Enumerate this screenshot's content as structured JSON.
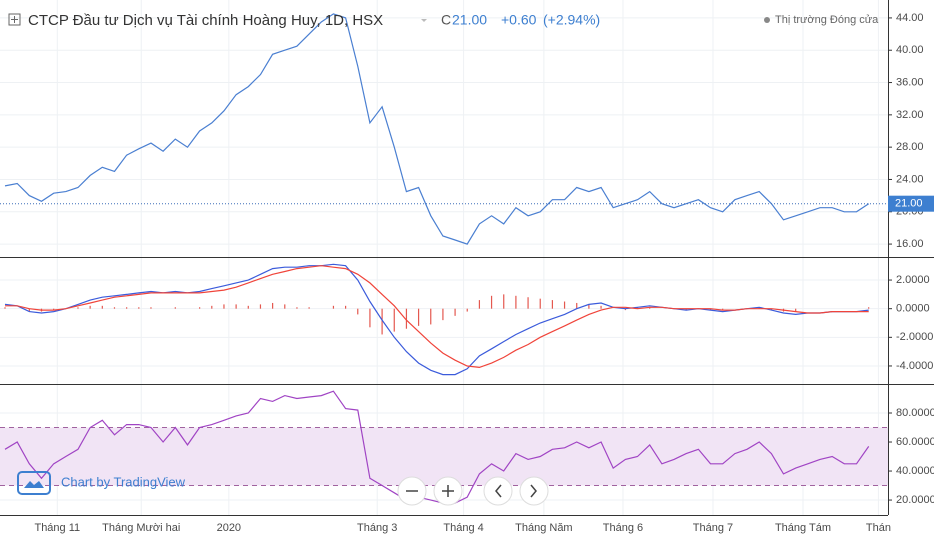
{
  "header": {
    "title": "CTCP Đầu tư Dịch vụ Tài chính Hoàng Huy, 1D, HSX",
    "close_prefix": "C",
    "close": "21.00",
    "change": "+0.60",
    "change_pct": "(+2.94%)",
    "status": "Thị trường Đóng cửa",
    "watermark": "Chart by TradingView"
  },
  "x_axis": {
    "xlim": [
      0,
      73
    ],
    "xticks": [
      {
        "value": 4.3,
        "label": "Tháng 11"
      },
      {
        "value": 11.2,
        "label": "Tháng Mười hai"
      },
      {
        "value": 18.4,
        "label": "2020"
      },
      {
        "value": 30.6,
        "label": "Tháng 3"
      },
      {
        "value": 37.7,
        "label": "Tháng 4"
      },
      {
        "value": 44.3,
        "label": "Tháng Năm"
      },
      {
        "value": 50.8,
        "label": "Tháng 6"
      },
      {
        "value": 58.2,
        "label": "Tháng 7"
      },
      {
        "value": 65.6,
        "label": "Tháng Tám"
      },
      {
        "value": 71.8,
        "label": "Thán"
      }
    ],
    "grid": true
  },
  "chart_data": [
    {
      "type": "line",
      "color": "#4a7fd1",
      "ylim": [
        14.4,
        45.6
      ],
      "yticks": [
        {
          "value": 16,
          "label": "16.00"
        },
        {
          "value": 20,
          "label": "20.00"
        },
        {
          "value": 24,
          "label": "24.00"
        },
        {
          "value": 28,
          "label": "28.00"
        },
        {
          "value": 32,
          "label": "32.00"
        },
        {
          "value": 36,
          "label": "36.00"
        },
        {
          "value": 40,
          "label": "40.00"
        },
        {
          "value": 44,
          "label": "44.00"
        }
      ],
      "values": [
        23.2,
        23.5,
        22.0,
        21.3,
        22.3,
        22.5,
        23.0,
        24.5,
        25.5,
        25.0,
        27.0,
        27.8,
        28.5,
        27.5,
        29.0,
        28.0,
        30.0,
        31.0,
        32.5,
        34.5,
        35.5,
        37.0,
        39.5,
        40.0,
        40.5,
        42.0,
        43.5,
        44.5,
        44.0,
        38.0,
        31.0,
        33.0,
        28.0,
        22.5,
        23.0,
        19.5,
        17.0,
        16.5,
        16.0,
        18.5,
        19.5,
        18.5,
        20.5,
        19.5,
        20.0,
        21.5,
        21.5,
        23.0,
        22.5,
        23.0,
        20.5,
        21.0,
        21.5,
        22.5,
        21.0,
        20.5,
        21.0,
        21.5,
        20.5,
        20.0,
        21.5,
        22.0,
        22.5,
        21.0,
        19.0,
        19.5,
        20.0,
        20.5,
        20.5,
        20.0,
        20.0,
        21.0
      ]
    },
    {
      "type": "macd",
      "ylim": [
        -5.26,
        3.54
      ],
      "yticks": [
        {
          "value": -4,
          "label": "-4.0000"
        },
        {
          "value": -2,
          "label": "-2.0000"
        },
        {
          "value": 0,
          "label": "0.0000"
        },
        {
          "value": 2,
          "label": "2.0000"
        }
      ],
      "series": [
        {
          "name": "MACD",
          "color": "#3b5bdb",
          "values": [
            0.3,
            0.2,
            -0.2,
            -0.3,
            -0.2,
            0.0,
            0.3,
            0.6,
            0.8,
            0.9,
            1.0,
            1.1,
            1.2,
            1.1,
            1.2,
            1.1,
            1.2,
            1.4,
            1.6,
            1.8,
            2.0,
            2.4,
            2.8,
            2.9,
            2.9,
            3.0,
            3.0,
            3.1,
            3.0,
            2.0,
            0.5,
            -0.8,
            -2.0,
            -3.0,
            -3.8,
            -4.3,
            -4.6,
            -4.6,
            -4.2,
            -3.3,
            -2.8,
            -2.3,
            -1.8,
            -1.4,
            -1.0,
            -0.7,
            -0.4,
            0.0,
            0.3,
            0.4,
            0.1,
            0.0,
            0.1,
            0.2,
            0.1,
            0.0,
            -0.1,
            0.0,
            -0.1,
            -0.2,
            -0.1,
            0.0,
            0.1,
            -0.1,
            -0.3,
            -0.4,
            -0.3,
            -0.3,
            -0.2,
            -0.2,
            -0.2,
            -0.1
          ]
        },
        {
          "name": "Signal",
          "color": "#f0443a",
          "values": [
            0.2,
            0.2,
            0.0,
            -0.1,
            -0.1,
            0.0,
            0.2,
            0.4,
            0.6,
            0.8,
            0.9,
            1.0,
            1.1,
            1.1,
            1.1,
            1.1,
            1.1,
            1.2,
            1.3,
            1.5,
            1.8,
            2.1,
            2.4,
            2.6,
            2.8,
            2.9,
            3.0,
            2.9,
            2.8,
            2.4,
            1.8,
            1.0,
            0.2,
            -0.8,
            -1.6,
            -2.4,
            -3.1,
            -3.6,
            -4.0,
            -4.1,
            -3.8,
            -3.4,
            -2.9,
            -2.5,
            -2.0,
            -1.6,
            -1.2,
            -0.8,
            -0.4,
            -0.1,
            0.1,
            0.1,
            0.0,
            0.1,
            0.1,
            0.0,
            0.0,
            0.0,
            0.0,
            -0.1,
            -0.1,
            0.0,
            0.0,
            0.0,
            -0.1,
            -0.2,
            -0.3,
            -0.3,
            -0.2,
            -0.2,
            -0.2,
            -0.2
          ]
        }
      ],
      "histogram": {
        "color": "#e4584f",
        "values": [
          0.1,
          0.0,
          -0.2,
          -0.2,
          -0.1,
          0.0,
          0.1,
          0.2,
          0.2,
          0.1,
          0.1,
          0.1,
          0.1,
          0.0,
          0.1,
          0.0,
          0.1,
          0.2,
          0.3,
          0.3,
          0.2,
          0.3,
          0.4,
          0.3,
          0.1,
          0.1,
          0.0,
          0.2,
          0.2,
          -0.4,
          -1.3,
          -1.8,
          -1.6,
          -1.4,
          -1.2,
          -1.1,
          -0.8,
          -0.5,
          -0.2,
          0.6,
          0.9,
          1.0,
          0.9,
          0.8,
          0.7,
          0.6,
          0.5,
          0.4,
          0.3,
          0.2,
          0.0,
          -0.1,
          0.1,
          0.1,
          0.0,
          0.0,
          -0.1,
          0.0,
          -0.1,
          -0.1,
          0.0,
          0.0,
          0.1,
          -0.1,
          -0.2,
          -0.2,
          0.0,
          0.0,
          0.0,
          0.0,
          0.0,
          0.1
        ]
      }
    },
    {
      "type": "line",
      "color": "#a044c4",
      "ylim": [
        9.7,
        99.3
      ],
      "bands": [
        30,
        70
      ],
      "band_color": "#f1e4f5",
      "yticks": [
        {
          "value": 20,
          "label": "20.0000"
        },
        {
          "value": 40,
          "label": "40.0000"
        },
        {
          "value": 60,
          "label": "60.0000"
        },
        {
          "value": 80,
          "label": "80.0000"
        }
      ],
      "values": [
        55,
        60,
        45,
        35,
        45,
        50,
        55,
        70,
        75,
        65,
        72,
        72,
        70,
        60,
        70,
        58,
        70,
        72,
        75,
        78,
        80,
        90,
        88,
        92,
        90,
        91,
        92,
        95,
        83,
        82,
        35,
        30,
        25,
        20,
        22,
        20,
        18,
        18,
        22,
        38,
        45,
        40,
        52,
        48,
        50,
        55,
        56,
        60,
        56,
        60,
        42,
        48,
        50,
        58,
        45,
        48,
        52,
        55,
        45,
        45,
        52,
        55,
        60,
        52,
        38,
        42,
        45,
        48,
        50,
        45,
        45,
        57
      ]
    }
  ]
}
